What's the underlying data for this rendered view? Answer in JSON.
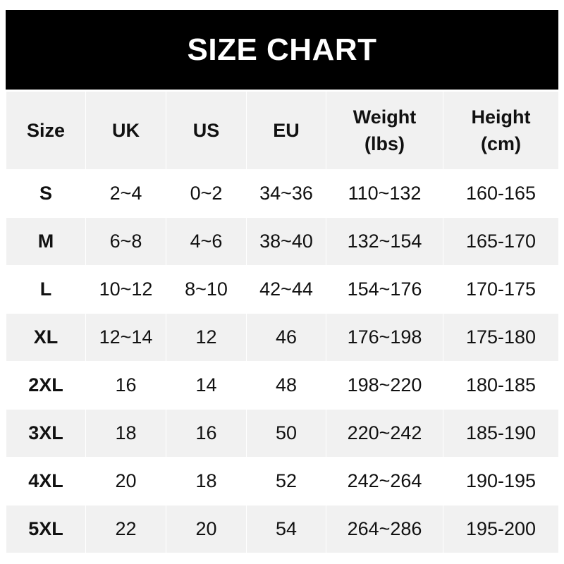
{
  "title": "SIZE CHART",
  "headers": [
    "Size",
    "UK",
    "US",
    "EU",
    "Weight\n(lbs)",
    "Height\n(cm)"
  ],
  "rows": [
    [
      "S",
      "2~4",
      "0~2",
      "34~36",
      "110~132",
      "160-165"
    ],
    [
      "M",
      "6~8",
      "4~6",
      "38~40",
      "132~154",
      "165-170"
    ],
    [
      "L",
      "10~12",
      "8~10",
      "42~44",
      "154~176",
      "170-175"
    ],
    [
      "XL",
      "12~14",
      "12",
      "46",
      "176~198",
      "175-180"
    ],
    [
      "2XL",
      "16",
      "14",
      "48",
      "198~220",
      "180-185"
    ],
    [
      "3XL",
      "18",
      "16",
      "50",
      "220~242",
      "185-190"
    ],
    [
      "4XL",
      "20",
      "18",
      "52",
      "242~264",
      "190-195"
    ],
    [
      "5XL",
      "22",
      "20",
      "54",
      "264~286",
      "195-200"
    ]
  ],
  "colors": {
    "header_bg": "#000000",
    "stripe": "#f1f1f1"
  }
}
